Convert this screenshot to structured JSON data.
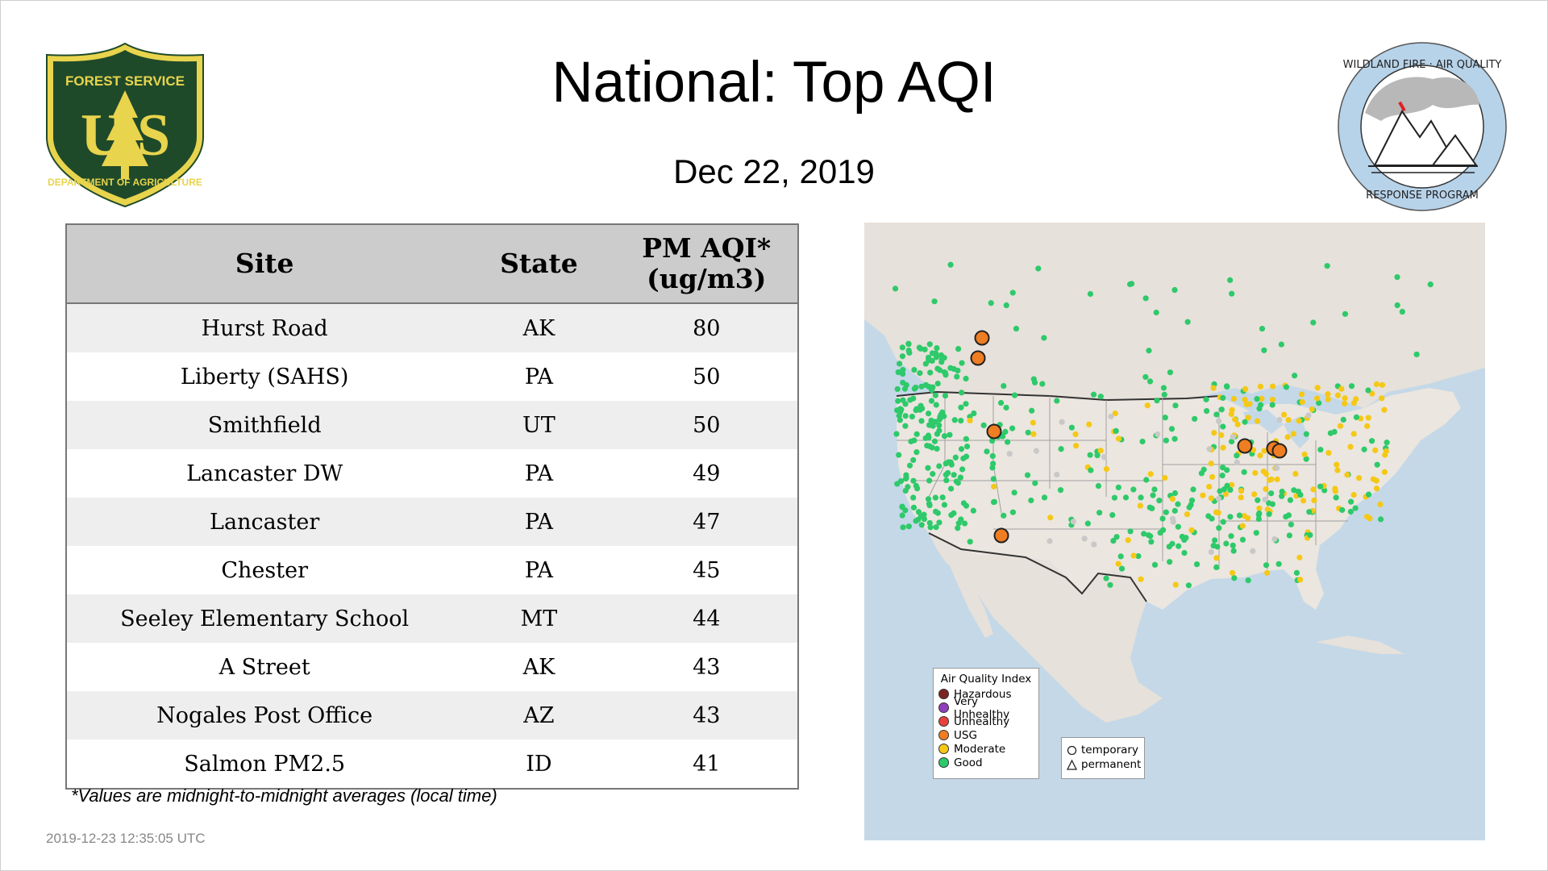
{
  "title": "National: Top AQI",
  "date": "Dec 22, 2019",
  "usfs_logo": {
    "icon": "forest-service-shield",
    "top_text": "FOREST SERVICE",
    "letters": "US",
    "bottom_text": "DEPARTMENT OF AGRICULTURE",
    "colors": {
      "shield": "#1f4a2a",
      "gold": "#e8d44d"
    }
  },
  "program_logo": {
    "icon": "mountains-smoke-seal",
    "top_text": "WILDLAND FIRE · AIR QUALITY",
    "bottom_text": "RESPONSE PROGRAM",
    "colors": {
      "ring": "#b7d3ea"
    }
  },
  "table": {
    "headers": {
      "site": "Site",
      "state": "State",
      "value_line1": "PM AQI*",
      "value_line2": "(ug/m3)"
    },
    "rows": [
      {
        "site": "Hurst Road",
        "state": "AK",
        "value": "80"
      },
      {
        "site": "Liberty (SAHS)",
        "state": "PA",
        "value": "50"
      },
      {
        "site": "Smithfield",
        "state": "UT",
        "value": "50"
      },
      {
        "site": "Lancaster DW",
        "state": "PA",
        "value": "49"
      },
      {
        "site": "Lancaster",
        "state": "PA",
        "value": "47"
      },
      {
        "site": "Chester",
        "state": "PA",
        "value": "45"
      },
      {
        "site": "Seeley Elementary School",
        "state": "MT",
        "value": "44"
      },
      {
        "site": "A Street",
        "state": "AK",
        "value": "43"
      },
      {
        "site": "Nogales Post Office",
        "state": "AZ",
        "value": "43"
      },
      {
        "site": "Salmon PM2.5",
        "state": "ID",
        "value": "41"
      }
    ]
  },
  "footnote": "*Values are midnight-to-midnight averages (local time)",
  "timestamp": "2019-12-23 12:35:05 UTC",
  "map": {
    "legend_title": "Air Quality Index",
    "categories": [
      {
        "label": "Hazardous",
        "color": "#7e2323"
      },
      {
        "label": "Very Unhealthy",
        "color": "#8f3fbd"
      },
      {
        "label": "Unhealthy",
        "color": "#e8413a"
      },
      {
        "label": "USG",
        "color": "#ef7d22"
      },
      {
        "label": "Moderate",
        "color": "#f5c816"
      },
      {
        "label": "Good",
        "color": "#2ec96a"
      }
    ],
    "monitor_types": [
      {
        "label": "temporary",
        "shape": "circle"
      },
      {
        "label": "permanent",
        "shape": "triangle"
      }
    ],
    "colors": {
      "water": "#c4d8e8",
      "land": "#ede9e4",
      "no_data": "#c8c8c8"
    }
  }
}
